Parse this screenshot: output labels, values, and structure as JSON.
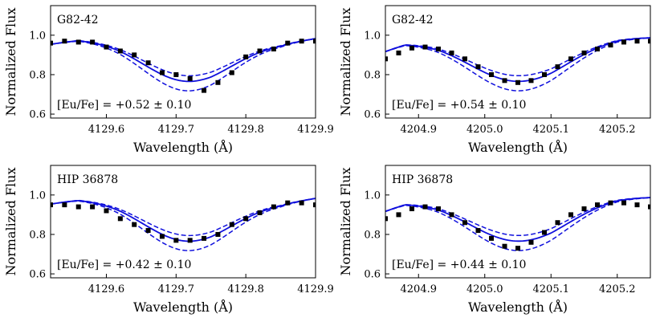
{
  "colors": {
    "model": "#1010dd",
    "observed": "#000000",
    "frame": "#000000"
  },
  "chart_data": [
    {
      "type": "line",
      "panel_label": "G82-42",
      "annotation": "[Eu/Fe] = +0.52 ± 0.10",
      "xlabel": "Wavelength (Å)",
      "ylabel": "Normalized Flux",
      "xlim": [
        4129.52,
        4129.9
      ],
      "ylim": [
        0.58,
        1.15
      ],
      "x_ticks": [
        4129.6,
        4129.7,
        4129.8,
        4129.9
      ],
      "x_tick_labels": [
        "4129.6",
        "4129.7",
        "4129.8",
        "4129.9"
      ],
      "y_ticks": [
        0.6,
        0.8,
        1.0
      ],
      "y_tick_labels": [
        "0.6",
        "0.8",
        "1.0"
      ],
      "line_center": 4129.715,
      "line_sigma": 0.062,
      "continuum": {
        "x": [
          4129.52,
          4129.56,
          4129.62,
          4129.75,
          4129.85,
          4129.9
        ],
        "y": [
          0.955,
          0.98,
          0.978,
          0.95,
          0.962,
          0.985
        ]
      },
      "model_depths": [
        0.17,
        0.2,
        0.25
      ],
      "observed": {
        "x": [
          4129.52,
          4129.54,
          4129.56,
          4129.58,
          4129.6,
          4129.62,
          4129.64,
          4129.66,
          4129.68,
          4129.7,
          4129.72,
          4129.74,
          4129.76,
          4129.78,
          4129.8,
          4129.82,
          4129.84,
          4129.86,
          4129.88,
          4129.9
        ],
        "y": [
          0.96,
          0.97,
          0.965,
          0.965,
          0.94,
          0.92,
          0.9,
          0.86,
          0.81,
          0.8,
          0.78,
          0.72,
          0.76,
          0.81,
          0.89,
          0.92,
          0.93,
          0.96,
          0.97,
          0.97
        ]
      }
    },
    {
      "type": "line",
      "panel_label": "G82-42",
      "annotation": "[Eu/Fe] = +0.54 ± 0.10",
      "xlabel": "Wavelength (Å)",
      "ylabel": "Normalized Flux",
      "xlim": [
        4204.85,
        4205.25
      ],
      "ylim": [
        0.58,
        1.15
      ],
      "x_ticks": [
        4204.9,
        4205.0,
        4205.1,
        4205.2
      ],
      "x_tick_labels": [
        "4204.9",
        "4205.0",
        "4205.1",
        "4205.2"
      ],
      "y_ticks": [
        0.6,
        0.8,
        1.0
      ],
      "y_tick_labels": [
        "0.6",
        "0.8",
        "1.0"
      ],
      "line_center": 4205.05,
      "line_sigma": 0.07,
      "continuum": {
        "x": [
          4204.85,
          4204.88,
          4204.93,
          4205.0,
          4205.1,
          4205.2,
          4205.25
        ],
        "y": [
          0.92,
          0.96,
          0.968,
          0.96,
          0.955,
          0.99,
          0.99
        ]
      },
      "model_depths": [
        0.17,
        0.2,
        0.25
      ],
      "observed": {
        "x": [
          4204.85,
          4204.87,
          4204.89,
          4204.91,
          4204.93,
          4204.95,
          4204.97,
          4204.99,
          4205.01,
          4205.03,
          4205.05,
          4205.07,
          4205.09,
          4205.11,
          4205.13,
          4205.15,
          4205.17,
          4205.19,
          4205.21,
          4205.23,
          4205.25
        ],
        "y": [
          0.88,
          0.91,
          0.935,
          0.94,
          0.93,
          0.91,
          0.88,
          0.84,
          0.8,
          0.77,
          0.76,
          0.77,
          0.8,
          0.84,
          0.88,
          0.91,
          0.93,
          0.95,
          0.965,
          0.97,
          0.97
        ]
      }
    },
    {
      "type": "line",
      "panel_label": "HIP 36878",
      "annotation": "[Eu/Fe] = +0.42 ± 0.10",
      "xlabel": "Wavelength (Å)",
      "ylabel": "Normalized Flux",
      "xlim": [
        4129.52,
        4129.9
      ],
      "ylim": [
        0.58,
        1.15
      ],
      "x_ticks": [
        4129.6,
        4129.7,
        4129.8,
        4129.9
      ],
      "x_tick_labels": [
        "4129.6",
        "4129.7",
        "4129.8",
        "4129.9"
      ],
      "y_ticks": [
        0.6,
        0.8,
        1.0
      ],
      "y_tick_labels": [
        "0.6",
        "0.8",
        "1.0"
      ],
      "line_center": 4129.715,
      "line_sigma": 0.062,
      "continuum": {
        "x": [
          4129.52,
          4129.56,
          4129.62,
          4129.75,
          4129.85,
          4129.9
        ],
        "y": [
          0.955,
          0.98,
          0.978,
          0.95,
          0.962,
          0.985
        ]
      },
      "model_depths": [
        0.17,
        0.2,
        0.25
      ],
      "observed": {
        "x": [
          4129.52,
          4129.54,
          4129.56,
          4129.58,
          4129.6,
          4129.62,
          4129.64,
          4129.66,
          4129.68,
          4129.7,
          4129.72,
          4129.74,
          4129.76,
          4129.78,
          4129.8,
          4129.82,
          4129.84,
          4129.86,
          4129.88,
          4129.9
        ],
        "y": [
          0.95,
          0.95,
          0.94,
          0.94,
          0.92,
          0.88,
          0.85,
          0.82,
          0.79,
          0.77,
          0.77,
          0.78,
          0.8,
          0.85,
          0.88,
          0.91,
          0.94,
          0.96,
          0.96,
          0.95
        ]
      }
    },
    {
      "type": "line",
      "panel_label": "HIP 36878",
      "annotation": "[Eu/Fe] = +0.44 ± 0.10",
      "xlabel": "Wavelength (Å)",
      "ylabel": "Normalized Flux",
      "xlim": [
        4204.85,
        4205.25
      ],
      "ylim": [
        0.58,
        1.15
      ],
      "x_ticks": [
        4204.9,
        4205.0,
        4205.1,
        4205.2
      ],
      "x_tick_labels": [
        "4204.9",
        "4205.0",
        "4205.1",
        "4205.2"
      ],
      "y_ticks": [
        0.6,
        0.8,
        1.0
      ],
      "y_tick_labels": [
        "0.6",
        "0.8",
        "1.0"
      ],
      "line_center": 4205.05,
      "line_sigma": 0.07,
      "continuum": {
        "x": [
          4204.85,
          4204.88,
          4204.93,
          4205.0,
          4205.1,
          4205.2,
          4205.25
        ],
        "y": [
          0.92,
          0.96,
          0.968,
          0.96,
          0.955,
          0.99,
          0.99
        ]
      },
      "model_depths": [
        0.17,
        0.2,
        0.25
      ],
      "observed": {
        "x": [
          4204.85,
          4204.87,
          4204.89,
          4204.91,
          4204.93,
          4204.95,
          4204.97,
          4204.99,
          4205.01,
          4205.03,
          4205.05,
          4205.07,
          4205.09,
          4205.11,
          4205.13,
          4205.15,
          4205.17,
          4205.19,
          4205.21,
          4205.23,
          4205.25
        ],
        "y": [
          0.88,
          0.9,
          0.93,
          0.94,
          0.93,
          0.9,
          0.86,
          0.82,
          0.78,
          0.74,
          0.73,
          0.76,
          0.81,
          0.86,
          0.9,
          0.93,
          0.95,
          0.96,
          0.96,
          0.95,
          0.94
        ]
      }
    }
  ]
}
